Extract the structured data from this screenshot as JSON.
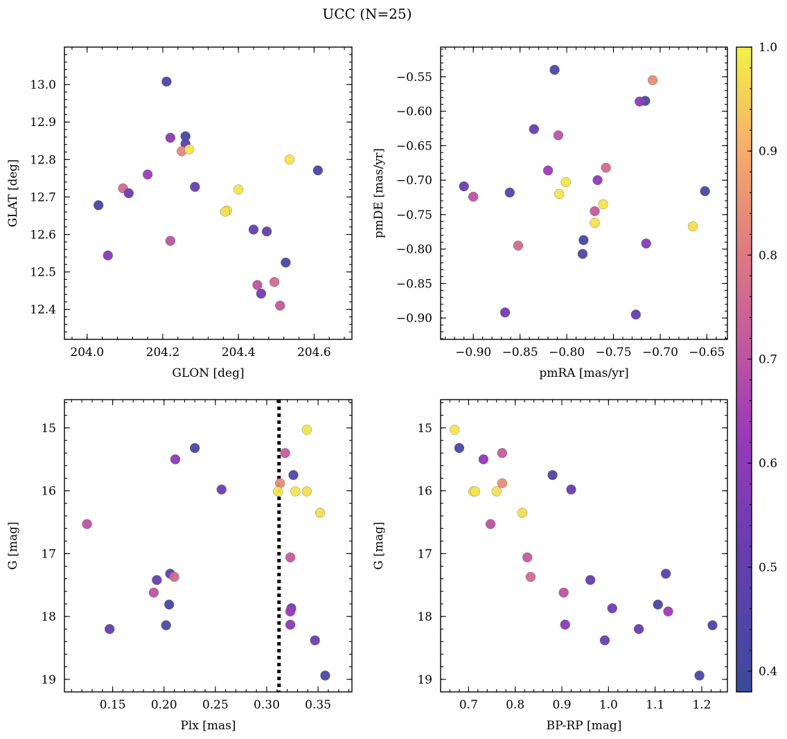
{
  "figure": {
    "title": "UCC (N=25)",
    "colormap": "plasma",
    "colorbar": {
      "min": 0.38,
      "max": 1.0,
      "ticks": [
        0.4,
        0.5,
        0.6,
        0.7,
        0.8,
        0.9,
        1.0
      ],
      "tick_labels": [
        "0.4",
        "0.5",
        "0.6",
        "0.7",
        "0.8",
        "0.9",
        "1.0"
      ]
    }
  },
  "chart_data": [
    {
      "type": "scatter",
      "xlabel": "GLON [deg]",
      "ylabel": "GLAT [deg]",
      "xlim": [
        203.94,
        204.7
      ],
      "ylim": [
        12.32,
        13.1
      ],
      "x_ticks": [
        204.0,
        204.2,
        204.4,
        204.6
      ],
      "x_tick_labels": [
        "204.0",
        "204.2",
        "204.4",
        "204.6"
      ],
      "y_ticks": [
        12.4,
        12.5,
        12.6,
        12.7,
        12.8,
        12.9,
        13.0
      ],
      "y_tick_labels": [
        "12.4",
        "12.5",
        "12.6",
        "12.7",
        "12.8",
        "12.9",
        "13.0"
      ],
      "y_inverted": false,
      "points": [
        {
          "x": 204.21,
          "y": 13.008,
          "c": 0.43
        },
        {
          "x": 204.22,
          "y": 12.858,
          "c": 0.6
        },
        {
          "x": 204.26,
          "y": 12.862,
          "c": 0.42
        },
        {
          "x": 204.26,
          "y": 12.842,
          "c": 0.47
        },
        {
          "x": 204.25,
          "y": 12.822,
          "c": 0.83
        },
        {
          "x": 204.27,
          "y": 12.827,
          "c": 0.98
        },
        {
          "x": 204.535,
          "y": 12.8,
          "c": 0.98
        },
        {
          "x": 204.61,
          "y": 12.771,
          "c": 0.43
        },
        {
          "x": 204.16,
          "y": 12.76,
          "c": 0.63
        },
        {
          "x": 204.095,
          "y": 12.723,
          "c": 0.76
        },
        {
          "x": 204.285,
          "y": 12.727,
          "c": 0.53
        },
        {
          "x": 204.4,
          "y": 12.72,
          "c": 0.98
        },
        {
          "x": 204.11,
          "y": 12.71,
          "c": 0.52
        },
        {
          "x": 204.03,
          "y": 12.678,
          "c": 0.42
        },
        {
          "x": 204.37,
          "y": 12.664,
          "c": 0.98
        },
        {
          "x": 204.365,
          "y": 12.661,
          "c": 0.97
        },
        {
          "x": 204.44,
          "y": 12.613,
          "c": 0.5
        },
        {
          "x": 204.475,
          "y": 12.608,
          "c": 0.5
        },
        {
          "x": 204.22,
          "y": 12.583,
          "c": 0.7
        },
        {
          "x": 204.055,
          "y": 12.544,
          "c": 0.59
        },
        {
          "x": 204.525,
          "y": 12.525,
          "c": 0.42
        },
        {
          "x": 204.495,
          "y": 12.473,
          "c": 0.76
        },
        {
          "x": 204.45,
          "y": 12.465,
          "c": 0.7
        },
        {
          "x": 204.46,
          "y": 12.442,
          "c": 0.54
        },
        {
          "x": 204.51,
          "y": 12.41,
          "c": 0.72
        }
      ]
    },
    {
      "type": "scatter",
      "xlabel": "pmRA [mas/yr]",
      "ylabel": "pmDE [mas/yr]",
      "xlim": [
        -0.935,
        -0.628
      ],
      "ylim": [
        -0.931,
        -0.507
      ],
      "x_ticks": [
        -0.9,
        -0.85,
        -0.8,
        -0.75,
        -0.7,
        -0.65
      ],
      "x_tick_labels": [
        "−0.90",
        "−0.85",
        "−0.80",
        "−0.75",
        "−0.70",
        "−0.65"
      ],
      "y_ticks": [
        -0.9,
        -0.85,
        -0.8,
        -0.75,
        -0.7,
        -0.65,
        -0.6,
        -0.55
      ],
      "y_tick_labels": [
        "−0.90",
        "−0.85",
        "−0.80",
        "−0.75",
        "−0.70",
        "−0.65",
        "−0.60",
        "−0.55"
      ],
      "y_inverted": false,
      "points": [
        {
          "x": -0.813,
          "y": -0.54,
          "c": 0.43
        },
        {
          "x": -0.708,
          "y": -0.555,
          "c": 0.84
        },
        {
          "x": -0.716,
          "y": -0.585,
          "c": 0.43
        },
        {
          "x": -0.722,
          "y": -0.586,
          "c": 0.6
        },
        {
          "x": -0.835,
          "y": -0.626,
          "c": 0.52
        },
        {
          "x": -0.809,
          "y": -0.635,
          "c": 0.7
        },
        {
          "x": -0.758,
          "y": -0.682,
          "c": 0.76
        },
        {
          "x": -0.82,
          "y": -0.686,
          "c": 0.63
        },
        {
          "x": -0.801,
          "y": -0.703,
          "c": 0.98
        },
        {
          "x": -0.767,
          "y": -0.7,
          "c": 0.6
        },
        {
          "x": -0.91,
          "y": -0.709,
          "c": 0.52
        },
        {
          "x": -0.861,
          "y": -0.718,
          "c": 0.47
        },
        {
          "x": -0.652,
          "y": -0.716,
          "c": 0.43
        },
        {
          "x": -0.808,
          "y": -0.72,
          "c": 0.98
        },
        {
          "x": -0.9,
          "y": -0.724,
          "c": 0.7
        },
        {
          "x": -0.761,
          "y": -0.735,
          "c": 0.98
        },
        {
          "x": -0.77,
          "y": -0.745,
          "c": 0.72
        },
        {
          "x": -0.77,
          "y": -0.762,
          "c": 0.98
        },
        {
          "x": -0.665,
          "y": -0.767,
          "c": 0.97
        },
        {
          "x": -0.715,
          "y": -0.792,
          "c": 0.59
        },
        {
          "x": -0.852,
          "y": -0.795,
          "c": 0.76
        },
        {
          "x": -0.782,
          "y": -0.787,
          "c": 0.42
        },
        {
          "x": -0.783,
          "y": -0.807,
          "c": 0.44
        },
        {
          "x": -0.866,
          "y": -0.892,
          "c": 0.54
        },
        {
          "x": -0.726,
          "y": -0.895,
          "c": 0.5
        }
      ]
    },
    {
      "type": "scatter",
      "xlabel": "Plx [mas]",
      "ylabel": "G [mag]",
      "xlim": [
        0.103,
        0.383
      ],
      "ylim": [
        19.2,
        14.55
      ],
      "x_ticks": [
        0.15,
        0.2,
        0.25,
        0.3,
        0.35
      ],
      "x_tick_labels": [
        "0.15",
        "0.20",
        "0.25",
        "0.30",
        "0.35"
      ],
      "y_ticks": [
        15,
        16,
        17,
        18,
        19
      ],
      "y_tick_labels": [
        "15",
        "16",
        "17",
        "18",
        "19"
      ],
      "y_inverted": true,
      "vline": {
        "x": 0.312,
        "style": "dotted"
      },
      "points": [
        {
          "x": 0.339,
          "y": 15.03,
          "c": 0.98
        },
        {
          "x": 0.23,
          "y": 15.32,
          "c": 0.43
        },
        {
          "x": 0.318,
          "y": 15.4,
          "c": 0.72
        },
        {
          "x": 0.211,
          "y": 15.5,
          "c": 0.6
        },
        {
          "x": 0.326,
          "y": 15.75,
          "c": 0.44
        },
        {
          "x": 0.313,
          "y": 15.88,
          "c": 0.84
        },
        {
          "x": 0.256,
          "y": 15.98,
          "c": 0.52
        },
        {
          "x": 0.311,
          "y": 16.01,
          "c": 0.98
        },
        {
          "x": 0.328,
          "y": 16.01,
          "c": 0.98
        },
        {
          "x": 0.339,
          "y": 16.01,
          "c": 0.97
        },
        {
          "x": 0.352,
          "y": 16.35,
          "c": 0.97
        },
        {
          "x": 0.125,
          "y": 16.53,
          "c": 0.7
        },
        {
          "x": 0.323,
          "y": 17.06,
          "c": 0.72
        },
        {
          "x": 0.206,
          "y": 17.32,
          "c": 0.47
        },
        {
          "x": 0.21,
          "y": 17.37,
          "c": 0.76
        },
        {
          "x": 0.193,
          "y": 17.42,
          "c": 0.5
        },
        {
          "x": 0.19,
          "y": 17.62,
          "c": 0.7
        },
        {
          "x": 0.205,
          "y": 17.81,
          "c": 0.42
        },
        {
          "x": 0.324,
          "y": 17.87,
          "c": 0.54
        },
        {
          "x": 0.323,
          "y": 17.92,
          "c": 0.63
        },
        {
          "x": 0.202,
          "y": 18.14,
          "c": 0.43
        },
        {
          "x": 0.323,
          "y": 18.13,
          "c": 0.59
        },
        {
          "x": 0.147,
          "y": 18.2,
          "c": 0.5
        },
        {
          "x": 0.347,
          "y": 18.38,
          "c": 0.52
        },
        {
          "x": 0.357,
          "y": 18.94,
          "c": 0.43
        }
      ]
    },
    {
      "type": "scatter",
      "xlabel": "BP-RP [mag]",
      "ylabel": "G [mag]",
      "xlim": [
        0.64,
        1.255
      ],
      "ylim": [
        19.2,
        14.55
      ],
      "x_ticks": [
        0.7,
        0.8,
        0.9,
        1.0,
        1.1,
        1.2
      ],
      "x_tick_labels": [
        "0.7",
        "0.8",
        "0.9",
        "1.0",
        "1.1",
        "1.2"
      ],
      "y_ticks": [
        15,
        16,
        17,
        18,
        19
      ],
      "y_tick_labels": [
        "15",
        "16",
        "17",
        "18",
        "19"
      ],
      "y_inverted": true,
      "points": [
        {
          "x": 0.67,
          "y": 15.03,
          "c": 0.98
        },
        {
          "x": 0.68,
          "y": 15.32,
          "c": 0.43
        },
        {
          "x": 0.772,
          "y": 15.4,
          "c": 0.72
        },
        {
          "x": 0.732,
          "y": 15.5,
          "c": 0.6
        },
        {
          "x": 0.88,
          "y": 15.75,
          "c": 0.44
        },
        {
          "x": 0.772,
          "y": 15.88,
          "c": 0.84
        },
        {
          "x": 0.92,
          "y": 15.98,
          "c": 0.52
        },
        {
          "x": 0.71,
          "y": 16.01,
          "c": 0.98
        },
        {
          "x": 0.714,
          "y": 16.01,
          "c": 0.98
        },
        {
          "x": 0.76,
          "y": 16.01,
          "c": 0.97
        },
        {
          "x": 0.815,
          "y": 16.35,
          "c": 0.97
        },
        {
          "x": 0.747,
          "y": 16.53,
          "c": 0.7
        },
        {
          "x": 0.826,
          "y": 17.06,
          "c": 0.72
        },
        {
          "x": 1.123,
          "y": 17.32,
          "c": 0.47
        },
        {
          "x": 0.833,
          "y": 17.37,
          "c": 0.76
        },
        {
          "x": 0.961,
          "y": 17.42,
          "c": 0.5
        },
        {
          "x": 0.904,
          "y": 17.62,
          "c": 0.7
        },
        {
          "x": 1.106,
          "y": 17.81,
          "c": 0.42
        },
        {
          "x": 1.008,
          "y": 17.87,
          "c": 0.54
        },
        {
          "x": 1.128,
          "y": 17.92,
          "c": 0.63
        },
        {
          "x": 1.223,
          "y": 18.14,
          "c": 0.43
        },
        {
          "x": 0.907,
          "y": 18.13,
          "c": 0.59
        },
        {
          "x": 1.065,
          "y": 18.2,
          "c": 0.5
        },
        {
          "x": 0.992,
          "y": 18.38,
          "c": 0.52
        },
        {
          "x": 1.195,
          "y": 18.94,
          "c": 0.43
        }
      ]
    }
  ]
}
